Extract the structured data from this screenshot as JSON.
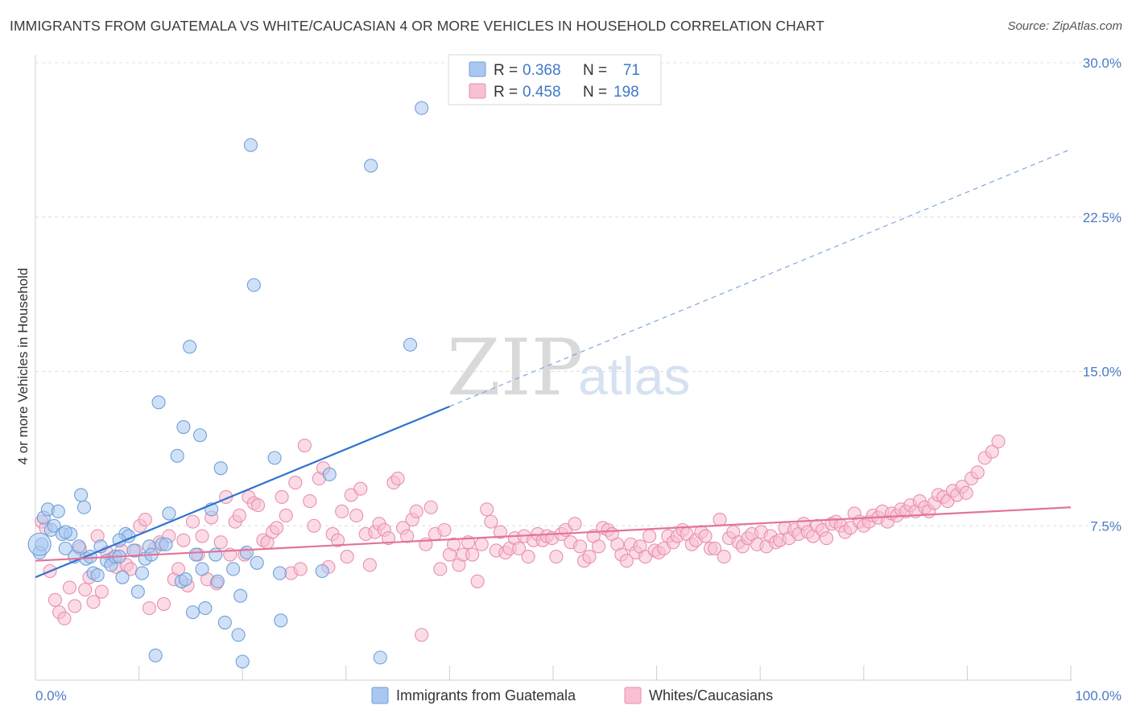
{
  "title": "IMMIGRANTS FROM GUATEMALA VS WHITE/CAUCASIAN 4 OR MORE VEHICLES IN HOUSEHOLD CORRELATION CHART",
  "source": "Source: ZipAtlas.com",
  "watermark": {
    "zip": "ZIP",
    "atlas": "atlas"
  },
  "legend": {
    "r_label": "R =",
    "n_label": "N =",
    "rows": [
      {
        "r": "0.368",
        "n": "71",
        "color": "#a9c8f0",
        "stroke": "#6f9fd8"
      },
      {
        "r": "0.458",
        "n": "198",
        "color": "#f8c0d2",
        "stroke": "#e98fae"
      }
    ]
  },
  "chart_data": {
    "type": "scatter",
    "ylabel": "4 or more Vehicles in Household",
    "xlim": [
      0,
      100
    ],
    "ylim": [
      0,
      30
    ],
    "x_tick_labels": [
      "0.0%",
      "100.0%"
    ],
    "y_ticks": [
      7.5,
      15.0,
      22.5,
      30.0
    ],
    "y_tick_labels": [
      "7.5%",
      "15.0%",
      "22.5%",
      "30.0%"
    ],
    "grid": "horizontal dashed",
    "legend_position": "top-center",
    "series": [
      {
        "name": "Immigrants from Guatemala",
        "color": "#a9c8f0",
        "stroke": "#6f9fd8",
        "line_color": "#2f72d0",
        "trend": {
          "x0": 0,
          "y0": 5.0,
          "x1": 40,
          "y1": 13.3,
          "x_dash_end": 100,
          "y_dash_end": 25.8
        },
        "points": [
          [
            0.4,
            6.2
          ],
          [
            0.6,
            6.6
          ],
          [
            0.8,
            7.9
          ],
          [
            1.2,
            8.3
          ],
          [
            1.5,
            7.3
          ],
          [
            1.8,
            7.5
          ],
          [
            2.2,
            8.2
          ],
          [
            2.6,
            7.1
          ],
          [
            2.9,
            6.4
          ],
          [
            3.4,
            7.1
          ],
          [
            3.8,
            6.0
          ],
          [
            4.2,
            6.5
          ],
          [
            4.4,
            9.0
          ],
          [
            4.9,
            5.9
          ],
          [
            5.3,
            6.0
          ],
          [
            5.6,
            5.2
          ],
          [
            6.0,
            5.1
          ],
          [
            6.3,
            6.5
          ],
          [
            6.9,
            5.8
          ],
          [
            7.3,
            5.6
          ],
          [
            7.7,
            6.0
          ],
          [
            8.1,
            6.0
          ],
          [
            8.4,
            5.0
          ],
          [
            8.7,
            7.1
          ],
          [
            9.0,
            7.0
          ],
          [
            9.5,
            6.3
          ],
          [
            9.9,
            4.3
          ],
          [
            10.3,
            5.2
          ],
          [
            10.6,
            5.9
          ],
          [
            11.0,
            6.5
          ],
          [
            11.2,
            6.1
          ],
          [
            11.6,
            1.2
          ],
          [
            11.9,
            13.5
          ],
          [
            12.2,
            6.6
          ],
          [
            12.6,
            6.6
          ],
          [
            12.9,
            8.1
          ],
          [
            13.7,
            10.9
          ],
          [
            14.1,
            4.8
          ],
          [
            14.3,
            12.3
          ],
          [
            14.5,
            4.9
          ],
          [
            14.9,
            16.2
          ],
          [
            15.2,
            3.3
          ],
          [
            15.5,
            6.1
          ],
          [
            15.9,
            11.9
          ],
          [
            16.1,
            5.4
          ],
          [
            16.4,
            3.5
          ],
          [
            17.0,
            8.3
          ],
          [
            17.4,
            6.1
          ],
          [
            17.6,
            4.8
          ],
          [
            17.9,
            10.3
          ],
          [
            18.3,
            2.8
          ],
          [
            19.1,
            5.4
          ],
          [
            19.6,
            2.2
          ],
          [
            19.8,
            4.1
          ],
          [
            20.0,
            0.9
          ],
          [
            20.4,
            6.2
          ],
          [
            20.8,
            26.0
          ],
          [
            21.1,
            19.2
          ],
          [
            21.4,
            5.7
          ],
          [
            23.1,
            10.8
          ],
          [
            23.7,
            2.9
          ],
          [
            23.6,
            5.2
          ],
          [
            27.7,
            5.3
          ],
          [
            28.4,
            10.0
          ],
          [
            32.4,
            25.0
          ],
          [
            33.3,
            1.1
          ],
          [
            36.2,
            16.3
          ],
          [
            37.3,
            27.8
          ],
          [
            2.9,
            7.2
          ],
          [
            4.7,
            8.4
          ],
          [
            8.1,
            6.8
          ]
        ]
      },
      {
        "name": "Whites/Caucasians",
        "color": "#f8c0d2",
        "stroke": "#e98fae",
        "line_color": "#e2739b",
        "trend": {
          "x0": 0,
          "y0": 5.8,
          "x1": 100,
          "y1": 8.4
        },
        "points": [
          [
            0.6,
            7.7
          ],
          [
            1.0,
            7.4
          ],
          [
            1.4,
            5.3
          ],
          [
            1.9,
            3.9
          ],
          [
            2.3,
            3.3
          ],
          [
            2.8,
            3.0
          ],
          [
            3.3,
            4.5
          ],
          [
            3.8,
            3.6
          ],
          [
            4.3,
            6.4
          ],
          [
            4.8,
            4.4
          ],
          [
            5.2,
            5.0
          ],
          [
            5.6,
            3.8
          ],
          [
            6.0,
            7.0
          ],
          [
            6.4,
            4.3
          ],
          [
            6.9,
            6.2
          ],
          [
            7.4,
            5.9
          ],
          [
            7.8,
            5.5
          ],
          [
            8.3,
            6.3
          ],
          [
            8.8,
            5.6
          ],
          [
            9.2,
            5.4
          ],
          [
            9.7,
            6.3
          ],
          [
            10.1,
            7.5
          ],
          [
            10.6,
            7.8
          ],
          [
            11.0,
            3.5
          ],
          [
            11.5,
            6.4
          ],
          [
            12.0,
            6.7
          ],
          [
            12.4,
            3.7
          ],
          [
            12.9,
            7.0
          ],
          [
            13.4,
            4.9
          ],
          [
            13.8,
            5.4
          ],
          [
            14.3,
            6.8
          ],
          [
            14.7,
            4.6
          ],
          [
            15.2,
            7.7
          ],
          [
            15.7,
            6.1
          ],
          [
            16.1,
            7.0
          ],
          [
            16.6,
            4.9
          ],
          [
            17.0,
            7.9
          ],
          [
            17.5,
            4.7
          ],
          [
            17.9,
            6.7
          ],
          [
            18.4,
            8.9
          ],
          [
            18.8,
            6.1
          ],
          [
            19.3,
            7.7
          ],
          [
            19.7,
            8.0
          ],
          [
            20.2,
            6.1
          ],
          [
            20.6,
            8.9
          ],
          [
            21.1,
            8.6
          ],
          [
            21.5,
            8.5
          ],
          [
            22.0,
            6.8
          ],
          [
            22.4,
            6.7
          ],
          [
            22.9,
            7.2
          ],
          [
            23.3,
            7.4
          ],
          [
            23.8,
            8.9
          ],
          [
            24.2,
            8.0
          ],
          [
            24.7,
            5.2
          ],
          [
            25.1,
            9.6
          ],
          [
            25.6,
            5.4
          ],
          [
            26.0,
            11.4
          ],
          [
            26.5,
            8.7
          ],
          [
            26.9,
            7.5
          ],
          [
            27.4,
            9.8
          ],
          [
            27.8,
            10.3
          ],
          [
            28.3,
            5.5
          ],
          [
            28.7,
            7.1
          ],
          [
            29.2,
            6.8
          ],
          [
            29.6,
            8.2
          ],
          [
            30.1,
            6.0
          ],
          [
            30.5,
            9.0
          ],
          [
            31.0,
            8.0
          ],
          [
            31.4,
            9.3
          ],
          [
            31.9,
            7.1
          ],
          [
            32.3,
            5.6
          ],
          [
            32.8,
            7.2
          ],
          [
            33.2,
            7.6
          ],
          [
            33.7,
            7.3
          ],
          [
            34.1,
            6.9
          ],
          [
            34.6,
            9.6
          ],
          [
            35.0,
            9.8
          ],
          [
            35.5,
            7.4
          ],
          [
            35.9,
            7.0
          ],
          [
            36.4,
            7.8
          ],
          [
            36.8,
            8.2
          ],
          [
            37.3,
            2.2
          ],
          [
            37.7,
            6.6
          ],
          [
            38.2,
            8.4
          ],
          [
            38.6,
            7.1
          ],
          [
            39.1,
            5.4
          ],
          [
            39.5,
            7.3
          ],
          [
            40.0,
            6.1
          ],
          [
            40.4,
            6.6
          ],
          [
            40.9,
            5.6
          ],
          [
            41.3,
            6.1
          ],
          [
            41.8,
            6.7
          ],
          [
            42.2,
            6.1
          ],
          [
            42.7,
            4.8
          ],
          [
            43.1,
            6.6
          ],
          [
            43.6,
            8.3
          ],
          [
            44.0,
            7.7
          ],
          [
            44.5,
            6.3
          ],
          [
            44.9,
            7.2
          ],
          [
            45.4,
            6.2
          ],
          [
            45.8,
            6.4
          ],
          [
            46.3,
            6.9
          ],
          [
            46.7,
            6.4
          ],
          [
            47.2,
            7.0
          ],
          [
            47.6,
            6.0
          ],
          [
            48.1,
            6.8
          ],
          [
            48.5,
            7.1
          ],
          [
            49.0,
            6.8
          ],
          [
            49.4,
            7.0
          ],
          [
            49.9,
            6.9
          ],
          [
            50.3,
            6.0
          ],
          [
            50.8,
            7.1
          ],
          [
            51.2,
            7.3
          ],
          [
            51.7,
            6.7
          ],
          [
            52.1,
            7.6
          ],
          [
            52.6,
            6.5
          ],
          [
            53.0,
            5.8
          ],
          [
            53.5,
            6.0
          ],
          [
            53.9,
            7.0
          ],
          [
            54.4,
            6.5
          ],
          [
            54.8,
            7.4
          ],
          [
            55.3,
            7.3
          ],
          [
            55.7,
            7.1
          ],
          [
            56.2,
            6.6
          ],
          [
            56.6,
            6.1
          ],
          [
            57.1,
            5.8
          ],
          [
            57.5,
            6.6
          ],
          [
            58.0,
            6.2
          ],
          [
            58.4,
            6.5
          ],
          [
            58.9,
            6.0
          ],
          [
            59.3,
            7.0
          ],
          [
            59.8,
            6.3
          ],
          [
            60.2,
            6.2
          ],
          [
            60.7,
            6.4
          ],
          [
            61.1,
            7.0
          ],
          [
            61.6,
            6.7
          ],
          [
            62.0,
            7.0
          ],
          [
            62.5,
            7.3
          ],
          [
            62.9,
            7.1
          ],
          [
            63.4,
            6.6
          ],
          [
            63.8,
            6.8
          ],
          [
            64.3,
            7.2
          ],
          [
            64.7,
            7.0
          ],
          [
            65.2,
            6.4
          ],
          [
            65.6,
            6.4
          ],
          [
            66.1,
            7.8
          ],
          [
            66.5,
            6.0
          ],
          [
            67.0,
            6.9
          ],
          [
            67.4,
            7.2
          ],
          [
            67.9,
            6.7
          ],
          [
            68.3,
            6.5
          ],
          [
            68.8,
            6.9
          ],
          [
            69.2,
            7.1
          ],
          [
            69.7,
            6.6
          ],
          [
            70.1,
            7.2
          ],
          [
            70.6,
            6.5
          ],
          [
            71.0,
            7.0
          ],
          [
            71.5,
            6.7
          ],
          [
            71.9,
            6.8
          ],
          [
            72.4,
            7.4
          ],
          [
            72.8,
            6.9
          ],
          [
            73.3,
            7.3
          ],
          [
            73.7,
            7.1
          ],
          [
            74.2,
            7.6
          ],
          [
            74.6,
            7.2
          ],
          [
            75.1,
            7.0
          ],
          [
            75.5,
            7.5
          ],
          [
            76.0,
            7.3
          ],
          [
            76.4,
            6.9
          ],
          [
            76.9,
            7.6
          ],
          [
            77.3,
            7.7
          ],
          [
            77.8,
            7.5
          ],
          [
            78.2,
            7.2
          ],
          [
            78.7,
            7.4
          ],
          [
            79.1,
            8.1
          ],
          [
            79.6,
            7.7
          ],
          [
            80.0,
            7.5
          ],
          [
            80.5,
            7.7
          ],
          [
            80.9,
            8.0
          ],
          [
            81.4,
            7.9
          ],
          [
            81.8,
            8.2
          ],
          [
            82.3,
            7.7
          ],
          [
            82.7,
            8.1
          ],
          [
            83.2,
            8.0
          ],
          [
            83.6,
            8.3
          ],
          [
            84.1,
            8.2
          ],
          [
            84.5,
            8.5
          ],
          [
            85.0,
            8.2
          ],
          [
            85.4,
            8.7
          ],
          [
            85.9,
            8.4
          ],
          [
            86.3,
            8.2
          ],
          [
            86.8,
            8.6
          ],
          [
            87.2,
            9.0
          ],
          [
            87.7,
            8.9
          ],
          [
            88.1,
            8.7
          ],
          [
            88.6,
            9.2
          ],
          [
            89.0,
            9.0
          ],
          [
            89.5,
            9.4
          ],
          [
            89.9,
            9.1
          ],
          [
            90.4,
            9.8
          ],
          [
            91.0,
            10.1
          ],
          [
            91.7,
            10.8
          ],
          [
            92.4,
            11.1
          ],
          [
            93.0,
            11.6
          ]
        ]
      }
    ]
  },
  "bottom_legend": [
    "Immigrants from Guatemala",
    "Whites/Caucasians"
  ]
}
